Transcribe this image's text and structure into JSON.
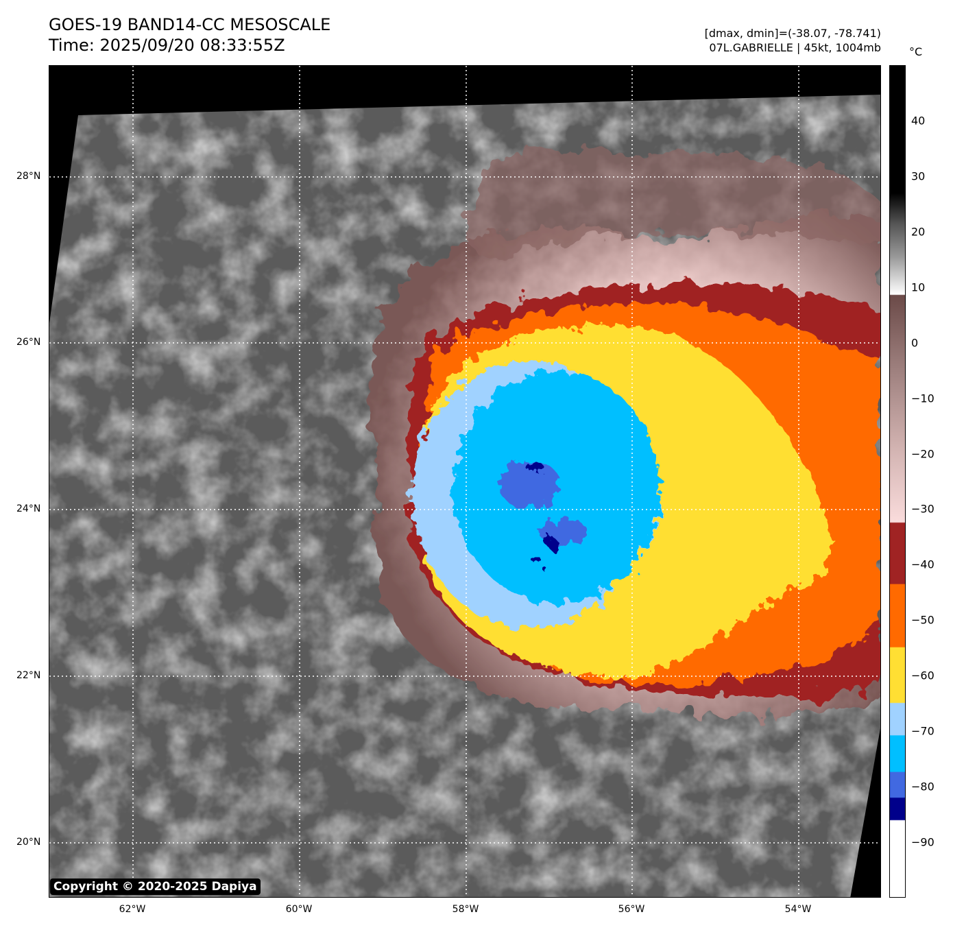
{
  "header": {
    "title": "GOES-19 BAND14-CC MESOSCALE",
    "time": "Time: 2025/09/20 08:33:55Z",
    "range": "[dmax, dmin]=(-38.07, -78.741)",
    "storm": "07L.GABRIELLE | 45kt, 1004mb"
  },
  "axes": {
    "lon_labels": [
      "62°W",
      "60°W",
      "58°W",
      "56°W",
      "54°W"
    ],
    "lat_labels": [
      "28°N",
      "26°N",
      "24°N",
      "22°N",
      "20°N"
    ]
  },
  "colorbar": {
    "unit": "°C",
    "range": [
      -100,
      50
    ],
    "ticks": [
      "40",
      "30",
      "20",
      "10",
      "0",
      "−10",
      "−20",
      "−30",
      "−40",
      "−50",
      "−60",
      "−70",
      "−80",
      "−90"
    ],
    "tick_values": [
      40,
      30,
      20,
      10,
      0,
      -10,
      -20,
      -30,
      -40,
      -50,
      -60,
      -70,
      -80,
      -90
    ],
    "colors": {
      "dark_red": "#a02323",
      "orange": "#ff6a00",
      "yellow": "#ffdf33",
      "light_blue": "#a0d2ff",
      "cyan": "#00bfff",
      "royal_blue": "#4169e1",
      "navy": "#00008b"
    }
  },
  "copyright": "Copyright © 2020-2025 Dapiya"
}
